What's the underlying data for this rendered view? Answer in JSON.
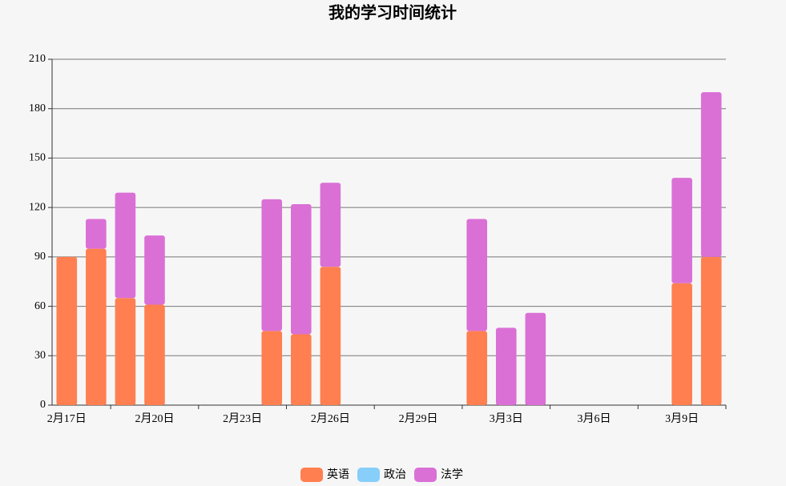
{
  "chart_data": {
    "type": "stacked-bar",
    "title": "我的学习时间统计",
    "categories": [
      "2月17日",
      null,
      null,
      "2月20日",
      null,
      null,
      "2月23日",
      null,
      null,
      "2月26日",
      null,
      null,
      "2月29日",
      null,
      null,
      "3月3日",
      null,
      null,
      "3月6日",
      null,
      null,
      "3月9日",
      null
    ],
    "series": [
      {
        "name": "英语",
        "color": "#ff7f50",
        "values": [
          90,
          95,
          65,
          61,
          0,
          0,
          0,
          45,
          43,
          84,
          0,
          0,
          0,
          0,
          45,
          0,
          0,
          0,
          0,
          0,
          0,
          74,
          90
        ]
      },
      {
        "name": "政治",
        "color": "#87cefa",
        "values": [
          0,
          0,
          0,
          0,
          0,
          0,
          0,
          0,
          0,
          0,
          0,
          0,
          0,
          0,
          0,
          0,
          0,
          0,
          0,
          0,
          0,
          0,
          0
        ]
      },
      {
        "name": "法学",
        "color": "#da70d6",
        "values": [
          0,
          18,
          64,
          42,
          0,
          0,
          0,
          80,
          79,
          51,
          0,
          0,
          0,
          0,
          68,
          47,
          56,
          0,
          0,
          0,
          0,
          64,
          100
        ]
      }
    ],
    "ylim": [
      0,
      210
    ],
    "yticks": [
      0,
      30,
      60,
      90,
      120,
      150,
      180,
      210
    ],
    "grid": true,
    "legend": "bottom"
  }
}
